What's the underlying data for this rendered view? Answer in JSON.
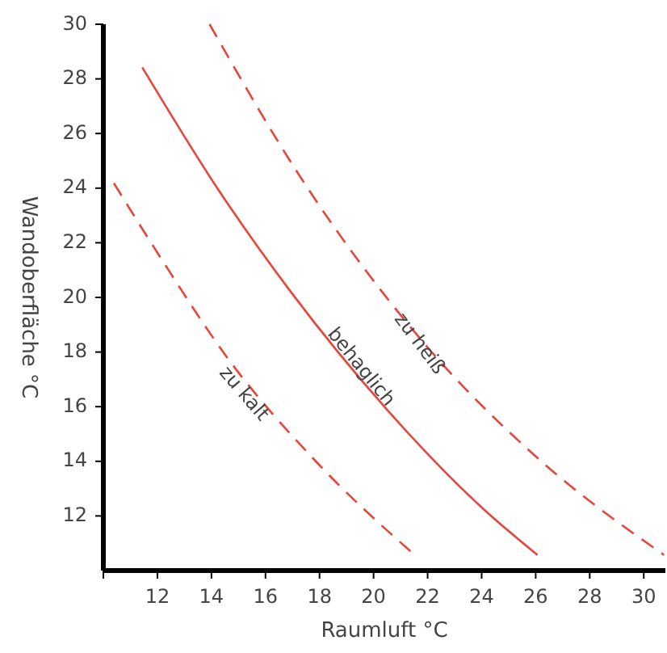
{
  "chart_data": {
    "type": "line",
    "xlabel": "Raumluft °C",
    "ylabel": "Wandoberfläche °C",
    "xlim": [
      10,
      30.8
    ],
    "ylim": [
      10,
      30
    ],
    "xticks": [
      {
        "value": 10,
        "label": null
      },
      12,
      14,
      16,
      18,
      20,
      22,
      24,
      26,
      28,
      30
    ],
    "yticks": [
      12,
      14,
      16,
      18,
      20,
      22,
      24,
      26,
      28,
      30
    ],
    "grid": false,
    "marker": "none",
    "series": [
      {
        "name": "zu kalt",
        "color": "#e8453c",
        "line_style": "dashed",
        "x": [
          10.39,
          12.14,
          14.53,
          17.94,
          21.52
        ],
        "values": [
          24.18,
          21.42,
          17.87,
          13.92,
          10.57
        ]
      },
      {
        "name": "behaglich",
        "color": "#e8453c",
        "line_style": "solid",
        "x": [
          11.44,
          14.23,
          16.91,
          20.49,
          24.07,
          26.07
        ],
        "values": [
          28.42,
          23.98,
          20.24,
          15.9,
          12.25,
          10.57
        ]
      },
      {
        "name": "zu heiß",
        "color": "#e8453c",
        "line_style": "dashed",
        "x": [
          13.93,
          17.31,
          22.09,
          26.07,
          30.75
        ],
        "values": [
          30,
          24.38,
          18.07,
          14.12,
          10.57
        ]
      }
    ]
  }
}
